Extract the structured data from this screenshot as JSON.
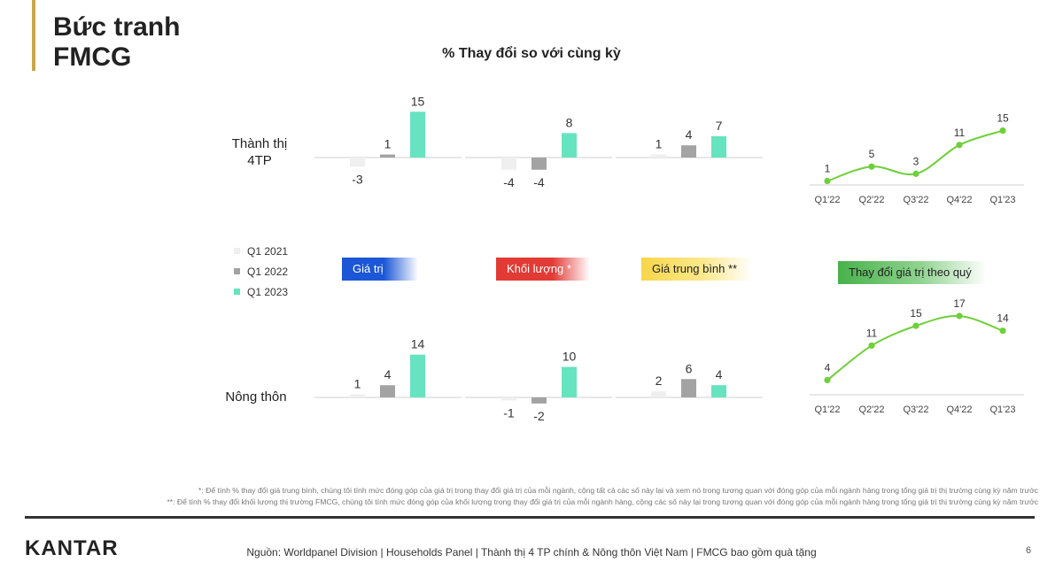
{
  "slide": {
    "title": "Bức tranh\nFMCG",
    "chart_title": "% Thay đổi so với cùng kỳ",
    "row_urban": "Thành thị\n4TP",
    "row_rural": "Nông thôn",
    "tag_value": "Giá trị",
    "tag_volume": "Khối lượng *",
    "tag_avg_price": "Giá trung bình **",
    "tag_quarterly": "Thay đổi giá trị theo quý",
    "footnote_1": "*: Để tính % thay đổi giá trung bình, chúng tôi tính mức đóng góp của giá trị trong thay đổi giá trị của mỗi ngành, cộng tất cả các số này lại và xem nó trong tương quan với đóng góp của mỗi ngành hàng trong tổng giá trị thị trường cùng kỳ năm trước",
    "footnote_2": "**: Để tính % thay đổi khối lượng thị trường FMCG, chúng tôi tính mức đóng góp của khối lượng trong thay đổi giá trị của mỗi ngành hàng, cộng các số này lại trong tương quan với đóng góp của mỗi ngành hàng trong tổng giá trị thị trường cùng kỳ năm trước",
    "logo": "KANTAR",
    "source": "Nguồn: Worldpanel Division | Households Panel | Thành thị 4 TP chính & Nông thôn Việt Nam | FMCG bao gồm quà tặng",
    "page_number": "6"
  },
  "colors": {
    "q1_2021": "#efefef",
    "q1_2022": "#a3a3a3",
    "q1_2023": "#66e3bf",
    "line": "#6ecf3a",
    "axis": "#cfcfcf"
  },
  "chart_data": [
    {
      "type": "bar",
      "title": "% Thay đổi so với cùng kỳ",
      "categories": [
        "Giá trị",
        "Khối lượng *",
        "Giá trung bình **"
      ],
      "legend": [
        "Q1 2021",
        "Q1 2022",
        "Q1 2023"
      ],
      "legend_position": "left",
      "panels": [
        {
          "name": "Thành thị 4TP",
          "groups": [
            {
              "category": "Giá trị",
              "values": [
                -3,
                1,
                15
              ]
            },
            {
              "category": "Khối lượng *",
              "values": [
                -4,
                -4,
                8
              ]
            },
            {
              "category": "Giá trung bình **",
              "values": [
                1,
                4,
                7
              ]
            }
          ]
        },
        {
          "name": "Nông thôn",
          "groups": [
            {
              "category": "Giá trị",
              "values": [
                1,
                4,
                14
              ]
            },
            {
              "category": "Khối lượng *",
              "values": [
                -1,
                -2,
                10
              ]
            },
            {
              "category": "Giá trung bình **",
              "values": [
                2,
                6,
                4
              ]
            }
          ]
        }
      ],
      "grid": false
    },
    {
      "type": "line",
      "title": "Thay đổi giá trị theo quý",
      "panels": [
        {
          "name": "Thành thị 4TP",
          "x": [
            "Q1'22",
            "Q2'22",
            "Q3'22",
            "Q4'22",
            "Q1'23"
          ],
          "y": [
            1,
            5,
            3,
            11,
            15
          ]
        },
        {
          "name": "Nông thôn",
          "x": [
            "Q1'22",
            "Q2'22",
            "Q3'22",
            "Q4'22",
            "Q1'23"
          ],
          "y": [
            4,
            11,
            15,
            17,
            14
          ]
        }
      ],
      "grid": false
    }
  ]
}
